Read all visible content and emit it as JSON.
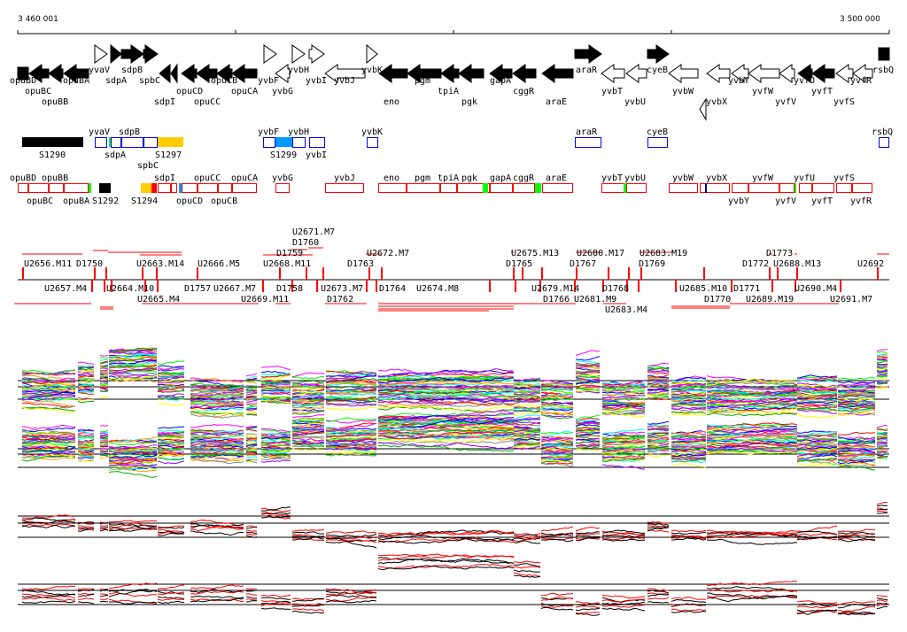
{
  "ruler": {
    "start_label": "3 460 001",
    "end_label": "3 500 000"
  },
  "colors": {
    "filled_gene": "#000000",
    "operon_box": "#0000ff",
    "tu_box": "#ff0000",
    "yellow": "#ffcc00",
    "cyan": "#0099ff",
    "green": "#00ff00",
    "marker": "#ff0000"
  },
  "gene_labels": [
    "opuBD",
    "opuBC",
    "opuBB",
    "opuBA",
    "yvaV",
    "sdpA",
    "sdpB",
    "spbC",
    "sdpI",
    "opuCD",
    "opuCC",
    "opuCB",
    "opuCA",
    "yvbF",
    "yvbG",
    "yvbH",
    "yvbI",
    "yvbJ",
    "yvbK",
    "eno",
    "pgm",
    "tpiA",
    "pgk",
    "gapA",
    "cggR",
    "araE",
    "araR",
    "yvbT",
    "yvbU",
    "cyeB",
    "yvbW",
    "yvbX",
    "yvbY",
    "yvfW",
    "yvfV",
    "yvfU",
    "yvfT",
    "yvfS",
    "yvfR",
    "rsbQ"
  ],
  "operon_labels": [
    "yvaV",
    "sdpA",
    "sdpB",
    "spbC",
    "yvbF",
    "yvbH",
    "yvbI",
    "yvbK",
    "araR",
    "cyeB",
    "rsbQ"
  ],
  "operon_ids": [
    "S1290",
    "S1297",
    "S1299"
  ],
  "tu_labels": [
    "opuBD",
    "opuBC",
    "opuBB",
    "opuBA",
    "sdpI",
    "opuCD",
    "opuCC",
    "opuCB",
    "opuCA",
    "yvbG",
    "yvbJ",
    "eno",
    "pgm",
    "tpiA",
    "pgk",
    "gapA",
    "cggR",
    "araE",
    "yvbT",
    "yvbU",
    "yvbW",
    "yvbX",
    "yvbY",
    "yvfW",
    "yvfV",
    "yvfU",
    "yvfT",
    "yvfS",
    "yvfR"
  ],
  "tu_ids": [
    "S1292",
    "S1294"
  ],
  "segment_labels_upper": [
    "U2656.M11",
    "D1750",
    "U2663.M14",
    "U2666.M5",
    "U2668.M11",
    "D1759",
    "D1760",
    "U2671.M7",
    "D1763",
    "U2672.M7",
    "U2675.M13",
    "D1765",
    "U2680.M17",
    "D1767",
    "U2683.M19",
    "D1769",
    "D1772",
    "D1773",
    "U2688.M13",
    "U2692"
  ],
  "segment_labels_lower": [
    "D1757",
    "D1758",
    "D1762",
    "D1764",
    "D1766",
    "D1768",
    "D1770",
    "D1771",
    "U2657.M4",
    "U2664.M10",
    "U2665.M4",
    "U2667.M7",
    "U2669.M11",
    "U2673.M7",
    "U2674.M8",
    "U2679.M14",
    "U2681.M9",
    "U2683.M4",
    "U2685.M10",
    "U2689.M19",
    "U2690.M4",
    "U2691.M7"
  ]
}
